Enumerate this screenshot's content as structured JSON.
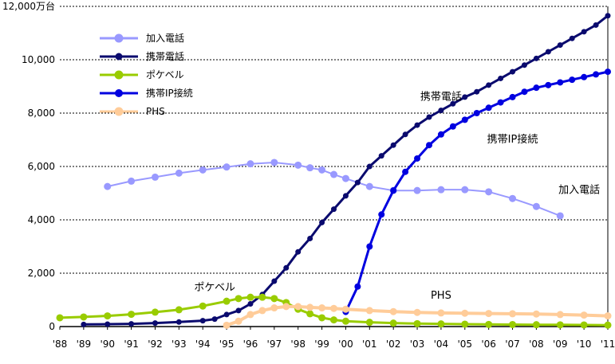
{
  "chart_data": {
    "type": "line",
    "y_unit_label": "12,000万台",
    "ylim": [
      0,
      12000
    ],
    "xlim": [
      1988,
      2011
    ],
    "y_ticks": [
      0,
      2000,
      4000,
      6000,
      8000,
      10000,
      12000
    ],
    "y_tick_labels": [
      "0",
      "2,000",
      "4,000",
      "6,000",
      "8,000",
      "10,000",
      "12,000万台"
    ],
    "x_ticks": [
      1988,
      1989,
      1990,
      1991,
      1992,
      1993,
      1994,
      1995,
      1996,
      1997,
      1998,
      1999,
      2000,
      2001,
      2002,
      2003,
      2004,
      2005,
      2006,
      2007,
      2008,
      2009,
      2010,
      2011
    ],
    "x_tick_labels": [
      "'88",
      "'89",
      "'90",
      "'91",
      "'92",
      "'93",
      "'94",
      "'95",
      "'96",
      "'97",
      "'98",
      "'99",
      "'00",
      "'01",
      "'02",
      "'03",
      "'04",
      "'05",
      "'06",
      "'07",
      "'08",
      "'09",
      "'10",
      "'11"
    ],
    "grid": "horizontal-dotted",
    "legend_position": "top-left",
    "series": [
      {
        "name": "加入電話",
        "color": "#9999ff",
        "marker_size": 9,
        "line_width": 2,
        "x": [
          1990,
          1991,
          1992,
          1993,
          1994,
          1995,
          1996,
          1997,
          1998,
          1998.5,
          1999,
          1999.5,
          2000,
          2001,
          2002,
          2003,
          2004,
          2005,
          2006,
          2007,
          2008,
          2009
        ],
        "values": [
          5250,
          5450,
          5600,
          5750,
          5870,
          5980,
          6100,
          6150,
          6050,
          5950,
          5870,
          5700,
          5550,
          5250,
          5100,
          5100,
          5130,
          5130,
          5050,
          4800,
          4500,
          4150
        ]
      },
      {
        "name": "携帯電話",
        "color": "#0a0a6e",
        "marker_size": 7,
        "line_width": 3,
        "x": [
          1989,
          1990,
          1991,
          1992,
          1993,
          1994,
          1994.5,
          1995,
          1995.5,
          1996,
          1996.5,
          1997,
          1997.5,
          1998,
          1998.5,
          1999,
          1999.5,
          2000,
          2000.5,
          2001,
          2001.5,
          2002,
          2002.5,
          2003,
          2003.5,
          2004,
          2004.5,
          2005,
          2005.5,
          2006,
          2006.5,
          2007,
          2007.5,
          2008,
          2008.5,
          2009,
          2009.5,
          2010,
          2010.5,
          2011
        ],
        "values": [
          80,
          90,
          100,
          130,
          170,
          220,
          280,
          450,
          600,
          850,
          1200,
          1700,
          2200,
          2800,
          3300,
          3900,
          4400,
          4900,
          5400,
          6000,
          6400,
          6800,
          7200,
          7550,
          7850,
          8100,
          8350,
          8600,
          8800,
          9050,
          9300,
          9550,
          9800,
          10050,
          10300,
          10550,
          10800,
          11050,
          11300,
          11650
        ]
      },
      {
        "name": "ポケベル",
        "color": "#99cc00",
        "marker_size": 9,
        "line_width": 3,
        "x": [
          1988,
          1989,
          1990,
          1991,
          1992,
          1993,
          1994,
          1995,
          1995.5,
          1996,
          1996.5,
          1997,
          1997.5,
          1998,
          1998.5,
          1999,
          1999.5,
          2000,
          2001,
          2002,
          2003,
          2004,
          2005,
          2006,
          2007,
          2008,
          2009,
          2010,
          2011
        ],
        "values": [
          330,
          360,
          400,
          460,
          540,
          630,
          770,
          950,
          1050,
          1100,
          1100,
          1050,
          900,
          650,
          480,
          330,
          250,
          200,
          160,
          130,
          110,
          100,
          90,
          80,
          75,
          70,
          65,
          60,
          55
        ]
      },
      {
        "name": "携帯IP接続",
        "color": "#0000e0",
        "marker_size": 8,
        "line_width": 3,
        "x": [
          2000,
          2000.5,
          2001,
          2001.5,
          2002,
          2002.5,
          2003,
          2003.5,
          2004,
          2004.5,
          2005,
          2005.5,
          2006,
          2006.5,
          2007,
          2007.5,
          2008,
          2008.5,
          2009,
          2009.5,
          2010,
          2010.5,
          2011
        ],
        "values": [
          550,
          1500,
          3000,
          4200,
          5100,
          5800,
          6300,
          6800,
          7200,
          7500,
          7750,
          8000,
          8200,
          8400,
          8600,
          8800,
          8950,
          9050,
          9150,
          9250,
          9350,
          9450,
          9550
        ]
      },
      {
        "name": "PHS",
        "color": "#ffcc99",
        "marker_size": 9,
        "line_width": 4,
        "x": [
          1995,
          1995.5,
          1996,
          1996.5,
          1997,
          1997.5,
          1998,
          1998.5,
          1999,
          1999.5,
          2000,
          2001,
          2002,
          2003,
          2004,
          2005,
          2006,
          2007,
          2008,
          2009,
          2010,
          2011
        ],
        "values": [
          50,
          200,
          450,
          600,
          700,
          750,
          750,
          720,
          700,
          680,
          650,
          600,
          560,
          530,
          510,
          500,
          490,
          480,
          470,
          450,
          430,
          400
        ]
      }
    ],
    "annotations": [
      {
        "text": "携帯電話",
        "x": 2004.0,
        "y": 8500
      },
      {
        "text": "携帯IP接続",
        "x": 2007.0,
        "y": 6900
      },
      {
        "text": "加入電話",
        "x": 2009.8,
        "y": 5000
      },
      {
        "text": "ポケベル",
        "x": 1994.5,
        "y": 1350
      },
      {
        "text": "PHS",
        "x": 2004.0,
        "y": 1050
      }
    ]
  }
}
